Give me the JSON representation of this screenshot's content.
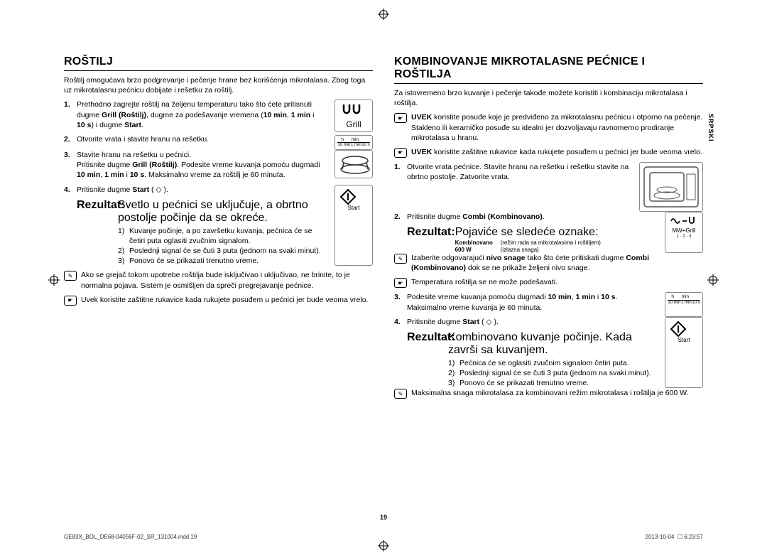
{
  "side_tab": "SRPSKI",
  "page_number": "19",
  "footer": {
    "left": "GE83X_BOL_DE68-04056F-02_SR_131004.indd   19",
    "right_date": "2013-10-04",
    "right_time": "6:23:57"
  },
  "left": {
    "heading": "ROŠTILJ",
    "intro": "Roštilj omogućava brzo podgrevanje i pečenje hrane bez korišćenja mikrotalasa. Zbog toga uz mikrotalasnu pećnicu dobijate i rešetku za roštilj.",
    "grill_icon_label": "Grill",
    "time_icon": {
      "h": "h",
      "min": "min",
      "l1": "10 min",
      "l2": "1 min",
      "l3": "10 s"
    },
    "start_icon_label": "Start",
    "steps": [
      {
        "n": "1.",
        "t": "Prethodno zagrejte roštilj na željenu temperaturu tako što ćete pritisnuti dugme <b>Grill (Roštilj)</b>, dugme za podešavanje vremena (<b>10 min</b>, <b>1 min</b> i <b>10 s</b>) i dugme <b>Start</b>."
      },
      {
        "n": "2.",
        "t": "Otvorite vrata i stavite hranu na rešetku."
      },
      {
        "n": "3.",
        "t": "Stavite hranu na rešetku u pećnici.<br>Pritisnite dugme <b>Grill (Roštilj)</b>. Podesite vreme kuvanja pomoću dugmadi <b>10 min</b>, <b>1 min</b> i <b>10 s</b>. Maksimalno vreme za roštilj je 60 minuta."
      },
      {
        "n": "4.",
        "t": "Pritisnite dugme <b>Start</b> ( ◇ )."
      }
    ],
    "result_label": "Rezultat:",
    "result_text": "Svetlo u pećnici se uključuje, a obrtno postolje počinje da se okreće.",
    "sublist": [
      {
        "n": "1)",
        "t": "Kuvanje počinje, a po završetku kuvanja, pećnica će se četiri puta oglasiti zvučnim signalom."
      },
      {
        "n": "2)",
        "t": "Poslednji signal će se čuti 3 puta (jednom na svaki minut)."
      },
      {
        "n": "3)",
        "t": "Ponovo će se prikazati trenutno vreme."
      }
    ],
    "notes": [
      {
        "icon": "✎",
        "t": "Ako se grejač tokom upotrebe roštilja bude isključivao i uključivao, ne brinite, to je normalna pojava. Sistem je osmišljen da spreči pregrejavanje pećnice."
      },
      {
        "icon": "☛",
        "t": "Uvek koristite zaštitne rukavice kada rukujete posuđem u pećnici jer bude veoma vrelo."
      }
    ]
  },
  "right": {
    "heading": "KOMBINOVANJE MIKROTALASNE PEĆNICE I ROŠTILJA",
    "intro": "Za istovremeno brzo kuvanje i pečenje takođe možete koristiti i kombinaciju mikrotalasa i roštilja.",
    "top_notes": [
      {
        "icon": "☛",
        "t": "<b>UVEK</b> koristite posuđe koje je predviđeno za mikrotalasnu pećnicu i otporno na pečenje. Stakleno ili keramičko posuđe su idealni jer dozvoljavaju ravnomerno prodiranje mikrotalasa u hranu."
      },
      {
        "icon": "☛",
        "t": "<b>UVEK</b> koristite zaštitne rukavice kada rukujete posuđem u pećnici jer bude veoma vrelo."
      }
    ],
    "mwgrill_label": "MW+Grill",
    "mwgrill_sub": "1 · 2 · 3",
    "steps": [
      {
        "n": "1.",
        "t": "Otvorite vrata pećnice. Stavite hranu na rešetku i rešetku stavite na obrtno postolje. Zatvorite vrata."
      },
      {
        "n": "2.",
        "t": "Pritisnite dugme <b>Combi (Kombinovano)</b>."
      }
    ],
    "result_label": "Rezultat:",
    "result_text": "Pojaviće se sledeće oznake:",
    "modes": [
      {
        "l": "Kombinovano",
        "r": "(režim rada sa mikrotalasima i roštiljem)"
      },
      {
        "l": "600 W",
        "r": "(izlazna snaga)"
      }
    ],
    "mid_notes": [
      {
        "icon": "✎",
        "t": "Izaberite odgovarajući <b>nivo snage</b> tako što ćete pritiskati dugme <b>Combi (Kombinovano)</b> dok se ne prikaže željeni nivo snage."
      },
      {
        "icon": "☛",
        "t": "Temperatura roštilja se ne može podešavati."
      }
    ],
    "step3": {
      "n": "3.",
      "t": "Podesite vreme kuvanja pomoću dugmadi <b>10 min</b>, <b>1 min</b> i <b>10 s</b>. Maksimalno vreme kuvanja je 60 minuta."
    },
    "time_icon": {
      "h": "h",
      "min": "min",
      "l1": "10 min",
      "l2": "1 min",
      "l3": "10 s"
    },
    "step4": {
      "n": "4.",
      "t": "Pritisnite dugme <b>Start</b> ( ◇ )."
    },
    "start_icon_label": "Start",
    "result4_label": "Rezultat:",
    "result4_text": "Kombinovano kuvanje počinje. Kada završi sa kuvanjem.",
    "sublist": [
      {
        "n": "1)",
        "t": "Pećnica će se oglasiti zvučnim signalom četiri puta."
      },
      {
        "n": "2)",
        "t": "Poslednji signal će se čuti 3 puta (jednom na svaki minut)."
      },
      {
        "n": "3)",
        "t": "Ponovo će se prikazati trenutno vreme."
      }
    ],
    "bottom_note": {
      "icon": "✎",
      "t": "Maksimalna snaga mikrotalasa za kombinovani režim mikrotalasa i roštilja je 600 W."
    }
  }
}
